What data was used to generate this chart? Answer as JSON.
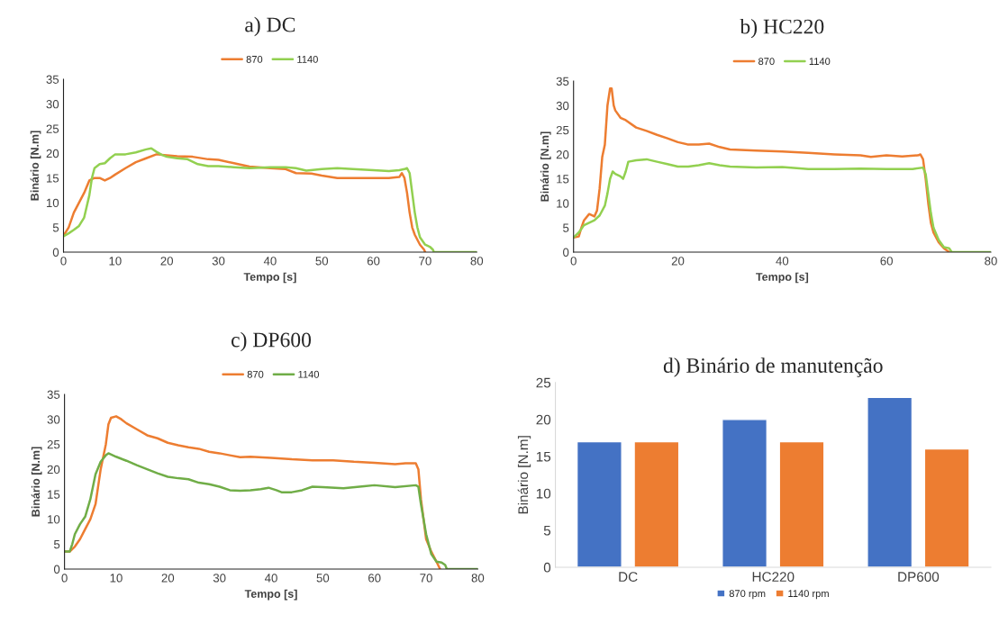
{
  "chart_data": [
    {
      "type": "line",
      "title": "a) DC",
      "xlabel": "Tempo [s]",
      "ylabel": "Binário [N.m]",
      "xlim": [
        0,
        80
      ],
      "xticks": [
        0,
        10,
        20,
        30,
        40,
        50,
        60,
        70,
        80
      ],
      "ylim": [
        0,
        35
      ],
      "yticks": [
        0,
        5,
        10,
        15,
        20,
        25,
        30,
        35
      ],
      "grid": false,
      "legend": "top",
      "series": [
        {
          "name": "870",
          "color": "#ed7d31",
          "x": [
            0,
            1,
            2,
            3,
            4,
            5,
            6,
            7,
            8,
            9,
            10,
            12,
            14,
            16,
            18,
            20,
            22,
            25,
            28,
            30,
            33,
            36,
            40,
            43,
            45,
            48,
            50,
            53,
            56,
            60,
            63,
            65,
            65.5,
            66,
            66.5,
            67,
            67.5,
            68,
            69,
            69.8,
            70
          ],
          "values": [
            3.3,
            5,
            8,
            10,
            12,
            14.5,
            15,
            15,
            14.5,
            15,
            15.7,
            17,
            18.2,
            19,
            19.8,
            19.6,
            19.4,
            19.3,
            18.8,
            18.7,
            18,
            17.3,
            17,
            16.8,
            16,
            15.9,
            15.5,
            15,
            15,
            15,
            15,
            15.2,
            16,
            15,
            12,
            8,
            5,
            3.5,
            1.5,
            0.5,
            0
          ]
        },
        {
          "name": "1140",
          "color": "#92d050",
          "x": [
            0,
            1,
            2,
            3,
            4,
            5,
            5.5,
            6,
            7,
            8,
            9,
            10,
            12,
            14,
            16,
            17,
            18,
            19,
            20,
            22,
            24,
            26,
            28,
            30,
            33,
            36,
            40,
            43,
            45,
            47,
            50,
            53,
            56,
            60,
            63,
            65,
            66,
            66.5,
            67,
            67.5,
            68,
            68.5,
            69,
            70,
            71,
            71.5,
            71.7,
            80
          ],
          "values": [
            3.2,
            3.8,
            4.5,
            5.3,
            7,
            11.5,
            15,
            17,
            17.8,
            18,
            19,
            19.8,
            19.8,
            20.2,
            20.8,
            21,
            20.3,
            19.7,
            19.3,
            19,
            18.8,
            17.8,
            17.4,
            17.4,
            17.2,
            17,
            17.2,
            17.2,
            17,
            16.5,
            16.8,
            17,
            16.8,
            16.6,
            16.4,
            16.6,
            16.8,
            17,
            16,
            12,
            8,
            5,
            3,
            1.5,
            1,
            0.5,
            0,
            0
          ]
        }
      ]
    },
    {
      "type": "line",
      "title": "b) HC220",
      "xlabel": "Tempo [s]",
      "ylabel": "Binário [N.m]",
      "xlim": [
        0,
        80
      ],
      "xticks": [
        0,
        20,
        40,
        60,
        80
      ],
      "ylim": [
        0,
        35
      ],
      "yticks": [
        0,
        5,
        10,
        15,
        20,
        25,
        30,
        35
      ],
      "grid": false,
      "legend": "top",
      "series": [
        {
          "name": "870",
          "color": "#ed7d31",
          "x": [
            0,
            1,
            1.5,
            2,
            3,
            4,
            4.5,
            5,
            5.5,
            6,
            6.5,
            7,
            7.3,
            7.7,
            8,
            9,
            10,
            12,
            14,
            16,
            18,
            20,
            22,
            24,
            26,
            28,
            30,
            35,
            40,
            45,
            50,
            55,
            57,
            60,
            63,
            66,
            66.5,
            67,
            67.5,
            68,
            68.5,
            69,
            70,
            71,
            72
          ],
          "values": [
            3,
            3.2,
            5,
            6.5,
            7.8,
            7.3,
            8.5,
            13,
            19.5,
            22,
            30,
            33.5,
            33.5,
            30,
            29,
            27.5,
            27,
            25.5,
            24.8,
            24,
            23.3,
            22.5,
            22,
            22,
            22.2,
            21.5,
            21,
            20.8,
            20.6,
            20.3,
            20,
            19.8,
            19.5,
            19.8,
            19.6,
            19.8,
            20,
            19,
            15,
            10,
            6,
            4,
            2,
            0.8,
            0
          ]
        },
        {
          "name": "1140",
          "color": "#92d050",
          "x": [
            0,
            1,
            2,
            3,
            4,
            5,
            6,
            6.5,
            7,
            7.5,
            8,
            9,
            9.5,
            10,
            10.5,
            12,
            14,
            16,
            18,
            20,
            22,
            24,
            26,
            28,
            30,
            35,
            40,
            45,
            50,
            55,
            60,
            65,
            67,
            67.5,
            68,
            68.5,
            69,
            70,
            71,
            72,
            72.5,
            80
          ],
          "values": [
            3,
            4,
            5.5,
            6,
            6.5,
            7.5,
            9.5,
            12,
            15,
            16.5,
            16,
            15.5,
            15,
            16.5,
            18.5,
            18.8,
            19,
            18.5,
            18,
            17.5,
            17.5,
            17.8,
            18.2,
            17.8,
            17.5,
            17.3,
            17.4,
            17,
            17,
            17.1,
            17,
            17,
            17.3,
            16,
            12,
            8,
            5,
            2.5,
            1,
            0.8,
            0,
            0
          ]
        }
      ]
    },
    {
      "type": "line",
      "title": "c) DP600",
      "xlabel": "Tempo [s]",
      "ylabel": "Binário [N.m]",
      "xlim": [
        0,
        80
      ],
      "xticks": [
        0,
        10,
        20,
        30,
        40,
        50,
        60,
        70,
        80
      ],
      "ylim": [
        0,
        35
      ],
      "yticks": [
        0,
        5,
        10,
        15,
        20,
        25,
        30,
        35
      ],
      "grid": false,
      "legend": "top",
      "series": [
        {
          "name": "870",
          "color": "#ed7d31",
          "x": [
            0,
            1,
            2,
            3,
            4,
            5,
            6,
            7,
            8,
            8.5,
            9,
            10,
            11,
            12,
            14,
            16,
            18,
            20,
            22,
            24,
            26,
            28,
            30,
            32,
            34,
            36,
            40,
            44,
            48,
            52,
            56,
            60,
            64,
            66,
            68,
            68.5,
            69,
            70,
            71,
            72,
            72.7
          ],
          "values": [
            3.5,
            3.5,
            4.5,
            6,
            8,
            10,
            13,
            20,
            25,
            29,
            30.3,
            30.6,
            30,
            29.2,
            28,
            26.8,
            26.2,
            25.3,
            24.8,
            24.4,
            24.1,
            23.5,
            23.2,
            22.8,
            22.4,
            22.5,
            22.3,
            22,
            21.8,
            21.8,
            21.5,
            21.3,
            21,
            21.2,
            21.2,
            20,
            14,
            6,
            3.5,
            1.5,
            0
          ]
        },
        {
          "name": "1140",
          "color": "#70ad47",
          "x": [
            0,
            1,
            1.5,
            2,
            3,
            4,
            5,
            6,
            7,
            8,
            8.5,
            10,
            12,
            14,
            16,
            18,
            20,
            22,
            24,
            26,
            28,
            30,
            32,
            34,
            36,
            38,
            39.5,
            41,
            42,
            44,
            46,
            48,
            50,
            54,
            58,
            60,
            64,
            68,
            68.5,
            69,
            70,
            71,
            72,
            73,
            73.7,
            74,
            80
          ],
          "values": [
            3.5,
            3.5,
            5,
            7,
            9,
            10.5,
            14,
            19,
            21.5,
            22.8,
            23.2,
            22.5,
            21.7,
            20.8,
            20,
            19.2,
            18.5,
            18.2,
            18,
            17.3,
            17,
            16.5,
            15.8,
            15.7,
            15.8,
            16,
            16.3,
            15.8,
            15.4,
            15.4,
            15.8,
            16.5,
            16.4,
            16.2,
            16.6,
            16.8,
            16.4,
            16.8,
            16.5,
            13,
            7,
            3,
            1.5,
            1.3,
            0.8,
            0,
            0
          ]
        }
      ]
    },
    {
      "type": "bar",
      "title": "d) Binário de manutenção",
      "ylabel": "Binário [N.m]",
      "categories": [
        "DC",
        "HC220",
        "DP600"
      ],
      "ylim": [
        0,
        25
      ],
      "yticks": [
        0,
        5,
        10,
        15,
        20,
        25
      ],
      "grid": false,
      "legend": "bottom",
      "series": [
        {
          "name": "870 rpm",
          "color": "#4472c4",
          "values": [
            17,
            20,
            23
          ]
        },
        {
          "name": "1140 rpm",
          "color": "#ed7d31",
          "values": [
            17,
            17,
            16
          ]
        }
      ]
    }
  ]
}
